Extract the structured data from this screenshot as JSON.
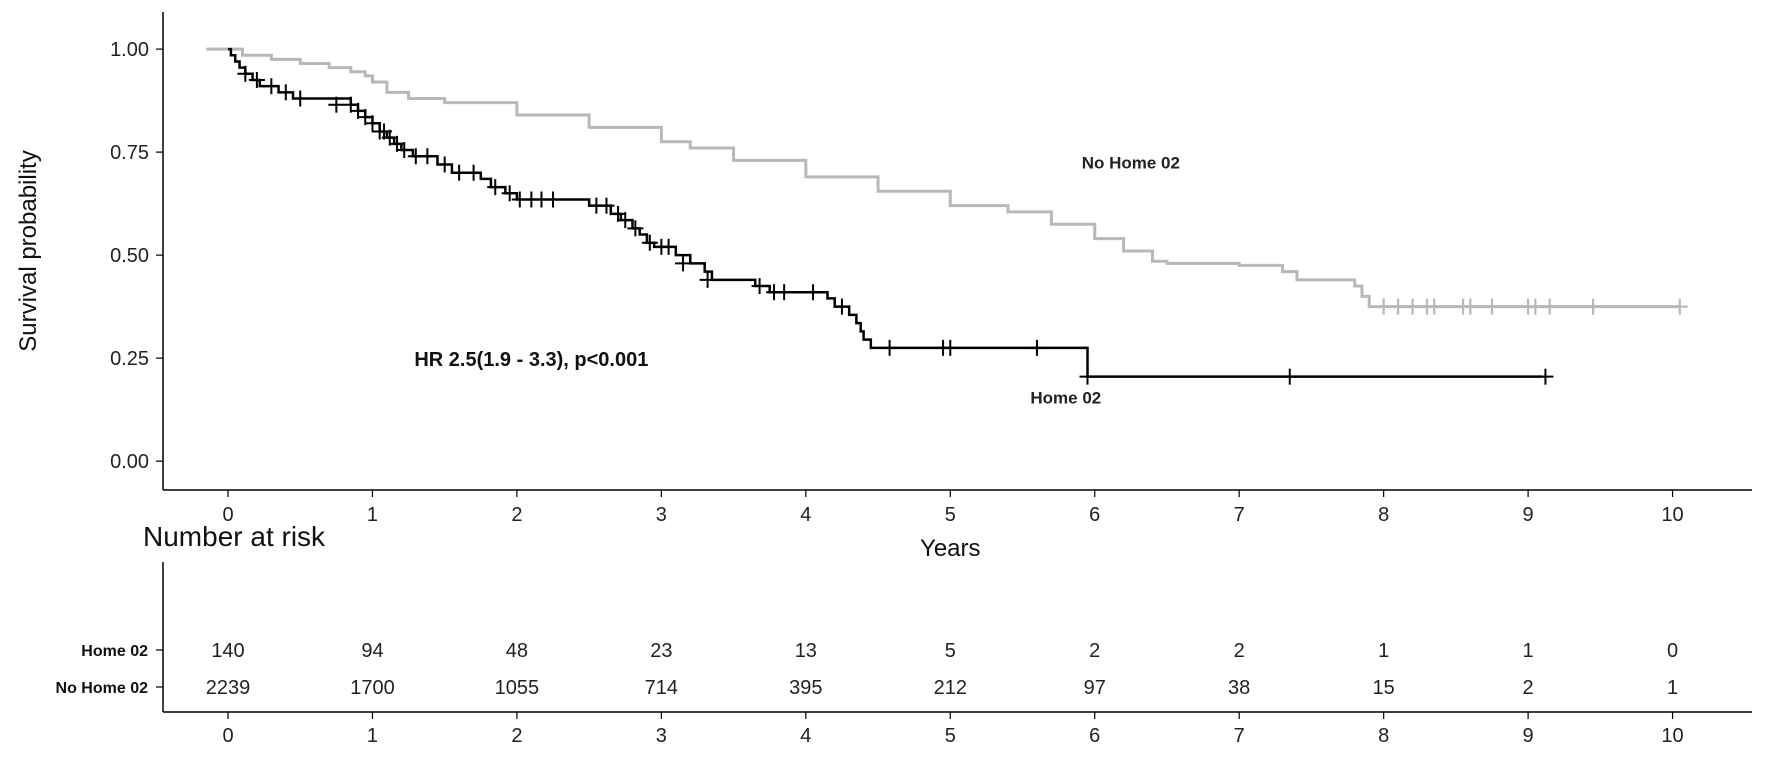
{
  "chart_data": {
    "type": "line",
    "subtype": "kaplan-meier",
    "xlabel": "Years",
    "ylabel": "Survival probability",
    "xlim": [
      -0.45,
      10.55
    ],
    "ylim": [
      -0.07,
      1.09
    ],
    "xticks": [
      0,
      1,
      2,
      3,
      4,
      5,
      6,
      7,
      8,
      9,
      10
    ],
    "xtick_labels": [
      "0",
      "1",
      "2",
      "3",
      "4",
      "5",
      "6",
      "7",
      "8",
      "9",
      "10"
    ],
    "yticks": [
      0,
      0.25,
      0.5,
      0.75,
      1.0
    ],
    "ytick_labels": [
      "0.00",
      "0.25",
      "0.50",
      "0.75",
      "1.00"
    ],
    "grid": false,
    "annotation": "HR 2.5(1.9 - 3.3), p<0.001",
    "series": [
      {
        "name": "Home 02",
        "color": "#000000",
        "steps": [
          [
            0,
            1.0
          ],
          [
            0.02,
            0.985
          ],
          [
            0.05,
            0.97
          ],
          [
            0.08,
            0.955
          ],
          [
            0.12,
            0.94
          ],
          [
            0.17,
            0.925
          ],
          [
            0.22,
            0.91
          ],
          [
            0.35,
            0.895
          ],
          [
            0.45,
            0.88
          ],
          [
            0.85,
            0.865
          ],
          [
            0.9,
            0.85
          ],
          [
            0.95,
            0.835
          ],
          [
            1.0,
            0.82
          ],
          [
            1.05,
            0.8
          ],
          [
            1.1,
            0.785
          ],
          [
            1.15,
            0.77
          ],
          [
            1.2,
            0.755
          ],
          [
            1.28,
            0.74
          ],
          [
            1.45,
            0.72
          ],
          [
            1.55,
            0.7
          ],
          [
            1.75,
            0.685
          ],
          [
            1.82,
            0.665
          ],
          [
            1.92,
            0.65
          ],
          [
            2.0,
            0.635
          ],
          [
            2.5,
            0.62
          ],
          [
            2.65,
            0.6
          ],
          [
            2.72,
            0.585
          ],
          [
            2.8,
            0.565
          ],
          [
            2.85,
            0.55
          ],
          [
            2.9,
            0.53
          ],
          [
            2.95,
            0.52
          ],
          [
            3.1,
            0.5
          ],
          [
            3.2,
            0.48
          ],
          [
            3.3,
            0.46
          ],
          [
            3.35,
            0.44
          ],
          [
            3.65,
            0.425
          ],
          [
            3.75,
            0.41
          ],
          [
            4.15,
            0.395
          ],
          [
            4.2,
            0.375
          ],
          [
            4.3,
            0.355
          ],
          [
            4.35,
            0.335
          ],
          [
            4.38,
            0.315
          ],
          [
            4.4,
            0.295
          ],
          [
            4.45,
            0.275
          ],
          [
            5.95,
            0.205
          ],
          [
            9.1,
            0.205
          ]
        ],
        "censored": [
          [
            0.12,
            0.94
          ],
          [
            0.2,
            0.925
          ],
          [
            0.3,
            0.91
          ],
          [
            0.4,
            0.895
          ],
          [
            0.5,
            0.88
          ],
          [
            0.75,
            0.865
          ],
          [
            0.85,
            0.865
          ],
          [
            0.9,
            0.85
          ],
          [
            0.95,
            0.835
          ],
          [
            1.0,
            0.82
          ],
          [
            1.05,
            0.8
          ],
          [
            1.08,
            0.8
          ],
          [
            1.12,
            0.785
          ],
          [
            1.17,
            0.77
          ],
          [
            1.22,
            0.755
          ],
          [
            1.3,
            0.74
          ],
          [
            1.38,
            0.74
          ],
          [
            1.5,
            0.72
          ],
          [
            1.6,
            0.7
          ],
          [
            1.7,
            0.7
          ],
          [
            1.85,
            0.665
          ],
          [
            1.95,
            0.65
          ],
          [
            2.02,
            0.635
          ],
          [
            2.1,
            0.635
          ],
          [
            2.17,
            0.635
          ],
          [
            2.25,
            0.635
          ],
          [
            2.55,
            0.62
          ],
          [
            2.62,
            0.62
          ],
          [
            2.7,
            0.6
          ],
          [
            2.75,
            0.585
          ],
          [
            2.82,
            0.565
          ],
          [
            2.92,
            0.53
          ],
          [
            3.0,
            0.52
          ],
          [
            3.05,
            0.52
          ],
          [
            3.15,
            0.48
          ],
          [
            3.32,
            0.44
          ],
          [
            3.68,
            0.425
          ],
          [
            3.78,
            0.41
          ],
          [
            3.85,
            0.41
          ],
          [
            4.05,
            0.41
          ],
          [
            4.25,
            0.375
          ],
          [
            4.58,
            0.275
          ],
          [
            4.95,
            0.275
          ],
          [
            5.0,
            0.275
          ],
          [
            5.6,
            0.275
          ],
          [
            5.95,
            0.205
          ],
          [
            7.35,
            0.205
          ],
          [
            9.12,
            0.205
          ]
        ]
      },
      {
        "name": "No Home 02",
        "color": "#b8b8b8",
        "steps": [
          [
            -0.15,
            1.0
          ],
          [
            0.0,
            1.0
          ],
          [
            0.1,
            0.985
          ],
          [
            0.3,
            0.975
          ],
          [
            0.5,
            0.965
          ],
          [
            0.7,
            0.955
          ],
          [
            0.85,
            0.945
          ],
          [
            0.95,
            0.935
          ],
          [
            1.0,
            0.92
          ],
          [
            1.1,
            0.895
          ],
          [
            1.25,
            0.88
          ],
          [
            1.5,
            0.87
          ],
          [
            2.0,
            0.84
          ],
          [
            2.5,
            0.81
          ],
          [
            3.0,
            0.775
          ],
          [
            3.2,
            0.76
          ],
          [
            3.5,
            0.73
          ],
          [
            4.0,
            0.69
          ],
          [
            4.5,
            0.655
          ],
          [
            5.0,
            0.62
          ],
          [
            5.4,
            0.605
          ],
          [
            5.7,
            0.575
          ],
          [
            6.0,
            0.54
          ],
          [
            6.2,
            0.51
          ],
          [
            6.4,
            0.485
          ],
          [
            6.5,
            0.48
          ],
          [
            7.0,
            0.475
          ],
          [
            7.3,
            0.46
          ],
          [
            7.4,
            0.44
          ],
          [
            7.8,
            0.425
          ],
          [
            7.85,
            0.4
          ],
          [
            7.9,
            0.375
          ],
          [
            10.05,
            0.375
          ]
        ],
        "censored_band": [
          [
            -0.15,
            1.0
          ],
          [
            0.0,
            1.0
          ],
          [
            0.3,
            0.975
          ],
          [
            0.7,
            0.955
          ],
          [
            0.95,
            0.935
          ],
          [
            1.25,
            0.88
          ],
          [
            2.0,
            0.84
          ],
          [
            3.0,
            0.775
          ],
          [
            3.5,
            0.73
          ],
          [
            4.5,
            0.655
          ],
          [
            5.4,
            0.605
          ],
          [
            6.0,
            0.54
          ],
          [
            6.5,
            0.48
          ],
          [
            7.3,
            0.465
          ],
          [
            7.8,
            0.44
          ]
        ],
        "censored": [
          [
            8.0,
            0.375
          ],
          [
            8.1,
            0.375
          ],
          [
            8.2,
            0.375
          ],
          [
            8.3,
            0.375
          ],
          [
            8.35,
            0.375
          ],
          [
            8.55,
            0.375
          ],
          [
            8.6,
            0.375
          ],
          [
            8.75,
            0.375
          ],
          [
            9.0,
            0.375
          ],
          [
            9.05,
            0.375
          ],
          [
            9.15,
            0.375
          ],
          [
            9.45,
            0.375
          ],
          [
            10.05,
            0.375
          ]
        ]
      }
    ],
    "series_labels": [
      {
        "text": "No Home 02",
        "x": 6.25,
        "y": 0.71
      },
      {
        "text": "Home 02",
        "x": 5.8,
        "y": 0.14
      }
    ],
    "risk_table": {
      "title": "Number at risk",
      "times": [
        0,
        1,
        2,
        3,
        4,
        5,
        6,
        7,
        8,
        9,
        10
      ],
      "time_labels": [
        "0",
        "1",
        "2",
        "3",
        "4",
        "5",
        "6",
        "7",
        "8",
        "9",
        "10"
      ],
      "rows": [
        {
          "label": "Home 02",
          "values": [
            "140",
            "94",
            "48",
            "23",
            "13",
            "5",
            "2",
            "2",
            "1",
            "1",
            "0"
          ]
        },
        {
          "label": "No Home 02",
          "values": [
            "2239",
            "1700",
            "1055",
            "714",
            "395",
            "212",
            "97",
            "38",
            "15",
            "2",
            "1"
          ]
        }
      ]
    }
  }
}
